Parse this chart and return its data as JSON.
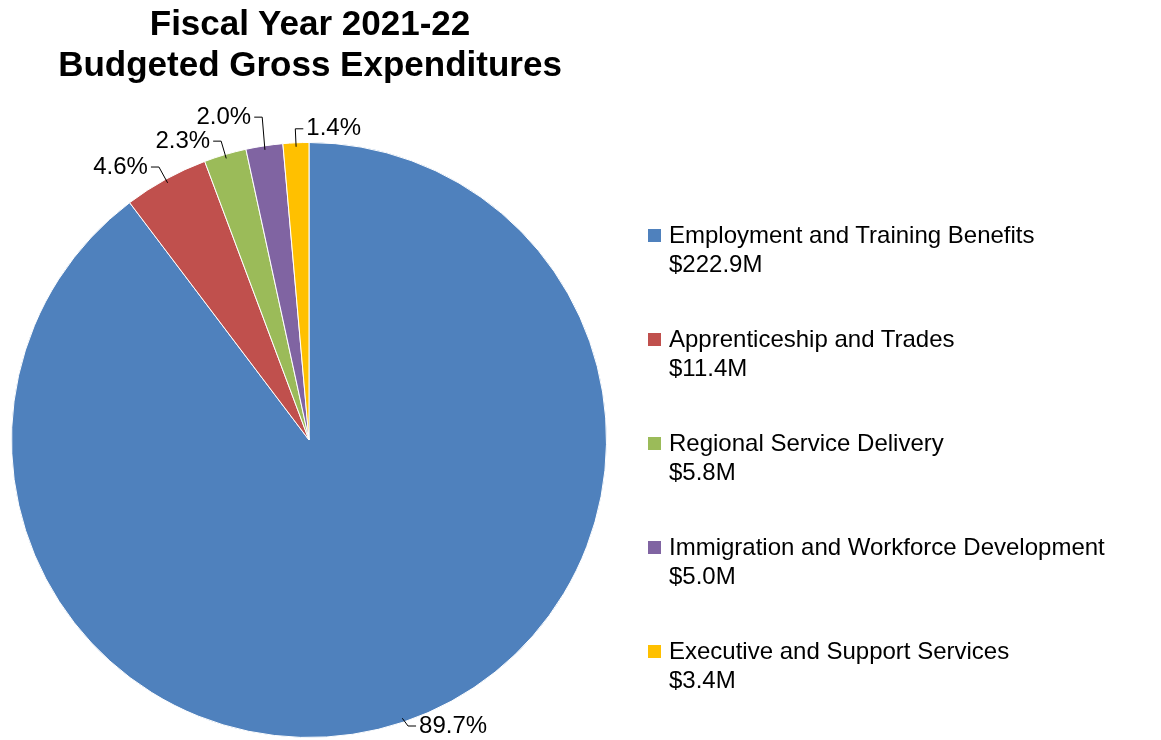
{
  "chart_data": {
    "type": "pie",
    "title": "Fiscal Year 2021-22\nBudgeted Gross Expenditures",
    "categories": [
      "Employment and Training Benefits\n$222.9M",
      "Apprenticeship and Trades\n$11.4M",
      "Regional Service Delivery\n$5.8M",
      "Immigration and Workforce Development\n$5.0M",
      "Executive and Support Services\n$3.4M"
    ],
    "values": [
      89.7,
      4.6,
      2.3,
      2.0,
      1.4
    ],
    "value_labels": [
      "89.7%",
      "4.6%",
      "2.3%",
      "2.0%",
      "1.4%"
    ],
    "colors": [
      "#4f81bd",
      "#c0504d",
      "#9bbb59",
      "#8064a2",
      "#ffc000"
    ],
    "legend": "right"
  }
}
